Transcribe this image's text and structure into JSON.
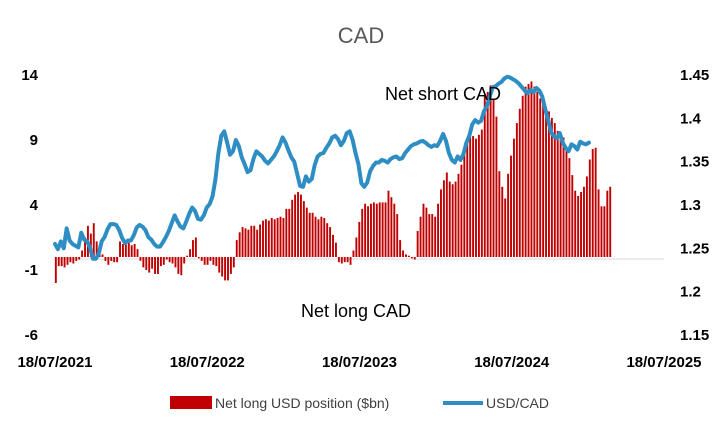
{
  "chart_data": {
    "type": "bar+line",
    "title": "CAD",
    "x_tick_labels": [
      "18/07/2021",
      "18/07/2022",
      "18/07/2023",
      "18/07/2024",
      "18/07/2025"
    ],
    "x_range": [
      "2021-07-18",
      "2025-07-18"
    ],
    "left_axis": {
      "ticks": [
        "14",
        "9",
        "4",
        "-1",
        "-6"
      ],
      "range": [
        -6,
        14
      ]
    },
    "right_axis": {
      "ticks": [
        "1.45",
        "1.4",
        "1.35",
        "1.3",
        "1.25",
        "1.2",
        "1.15"
      ],
      "range": [
        1.15,
        1.45
      ]
    },
    "annotations": {
      "top": "Net short CAD",
      "bottom": "Net long CAD"
    },
    "legend": {
      "position": "bottom"
    },
    "series": [
      {
        "name": "Net long USD position ($bn)",
        "axis": "left",
        "color": "#c00000",
        "date_step_days": 7,
        "start_date": "2021-07-20",
        "values": [
          -2,
          -0.7,
          -0.7,
          -0.8,
          -0.6,
          -0.4,
          -0.5,
          -0.3,
          -0.2,
          0.5,
          1.5,
          2.4,
          1.8,
          2.6,
          1.2,
          0.4,
          0.2,
          -0.3,
          -0.6,
          -0.3,
          -0.4,
          -0.4,
          1.2,
          1,
          1.1,
          1.1,
          0.9,
          1,
          0.6,
          -0.3,
          -0.8,
          -1,
          -1.2,
          -0.9,
          -1.3,
          -1.3,
          -0.7,
          -0.6,
          -0.2,
          -0.4,
          -0.5,
          -0.8,
          -1.3,
          -1.4,
          -0.5,
          0.1,
          0.6,
          1.3,
          1.5,
          -0.1,
          -0.3,
          -0.6,
          -0.6,
          -0.3,
          -0.6,
          -0.7,
          -1.2,
          -1.5,
          -1.8,
          -1.8,
          -1.3,
          -0.8,
          1.3,
          1.9,
          2.3,
          2.2,
          2.1,
          2.4,
          2.4,
          2.1,
          2.5,
          2.8,
          2.9,
          2.8,
          3,
          2.9,
          3,
          3.1,
          3,
          3.7,
          3.7,
          4.4,
          4.8,
          5,
          4.8,
          4.3,
          3.8,
          3.4,
          3.4,
          3.1,
          2.9,
          3.1,
          3,
          2.6,
          2.3,
          1.7,
          1.1,
          -0.4,
          -0.5,
          -0.4,
          -0.4,
          -0.6,
          0.5,
          1.5,
          2.7,
          3.7,
          4.1,
          3.9,
          4.1,
          4.2,
          4.1,
          4.2,
          4.2,
          4.2,
          5.1,
          4.6,
          4.1,
          3.3,
          1.3,
          0.5,
          0.2,
          0.1,
          -0.1,
          -0.2,
          2,
          3.1,
          4.1,
          3.8,
          3.3,
          3.3,
          3.1,
          4.1,
          5.2,
          5.9,
          6.5,
          5.8,
          5.6,
          5.8,
          6.4,
          7.1,
          8.1,
          8.8,
          9.2,
          9.3,
          9.1,
          9.4,
          9.8,
          12.4,
          12.7,
          13.2,
          12.2,
          10.8,
          6.6,
          5.4,
          4.5,
          6.4,
          7.8,
          9.1,
          10.3,
          11.4,
          12.4,
          13.1,
          13.3,
          13.5,
          13.1,
          12.7,
          12.2,
          11.8,
          11.5,
          11.2,
          10.7,
          10.3,
          9.7,
          9.3,
          9.2,
          8.5,
          7.6,
          6.3,
          5.1,
          4.7,
          5,
          5.4,
          6.2,
          7.5,
          8.3,
          8.4,
          5.2,
          3.9,
          3.9,
          5.1,
          5.4
        ]
      },
      {
        "name": "USD/CAD",
        "axis": "right",
        "color": "#2e8ec4",
        "date_step_days": 7,
        "start_date": "2021-07-18",
        "values": [
          1.255,
          1.249,
          1.258,
          1.25,
          1.273,
          1.259,
          1.255,
          1.253,
          1.251,
          1.268,
          1.26,
          1.258,
          1.251,
          1.238,
          1.238,
          1.244,
          1.258,
          1.263,
          1.272,
          1.278,
          1.278,
          1.277,
          1.271,
          1.262,
          1.256,
          1.259,
          1.259,
          1.265,
          1.274,
          1.277,
          1.275,
          1.271,
          1.263,
          1.26,
          1.255,
          1.252,
          1.252,
          1.257,
          1.263,
          1.27,
          1.279,
          1.288,
          1.281,
          1.275,
          1.273,
          1.281,
          1.29,
          1.297,
          1.293,
          1.284,
          1.283,
          1.288,
          1.297,
          1.301,
          1.31,
          1.33,
          1.36,
          1.38,
          1.385,
          1.372,
          1.358,
          1.362,
          1.375,
          1.368,
          1.355,
          1.347,
          1.338,
          1.34,
          1.353,
          1.362,
          1.359,
          1.356,
          1.351,
          1.348,
          1.352,
          1.356,
          1.362,
          1.369,
          1.378,
          1.372,
          1.363,
          1.355,
          1.35,
          1.336,
          1.322,
          1.321,
          1.333,
          1.327,
          1.33,
          1.346,
          1.356,
          1.359,
          1.36,
          1.366,
          1.371,
          1.378,
          1.38,
          1.376,
          1.369,
          1.374,
          1.383,
          1.385,
          1.375,
          1.36,
          1.347,
          1.325,
          1.321,
          1.326,
          1.339,
          1.345,
          1.349,
          1.349,
          1.352,
          1.351,
          1.349,
          1.353,
          1.355,
          1.356,
          1.353,
          1.354,
          1.36,
          1.364,
          1.368,
          1.37,
          1.371,
          1.373,
          1.374,
          1.372,
          1.369,
          1.367,
          1.369,
          1.368,
          1.374,
          1.382,
          1.374,
          1.36,
          1.352,
          1.349,
          1.356,
          1.352,
          1.359,
          1.372,
          1.38,
          1.393,
          1.398,
          1.395,
          1.397,
          1.408,
          1.414,
          1.425,
          1.436,
          1.437,
          1.44,
          1.442,
          1.446,
          1.448,
          1.447,
          1.445,
          1.443,
          1.44,
          1.436,
          1.432,
          1.429,
          1.433,
          1.43,
          1.435,
          1.432,
          1.425,
          1.411,
          1.398,
          1.384,
          1.379,
          1.377,
          1.383,
          1.372,
          1.366,
          1.362,
          1.37,
          1.368,
          1.364,
          1.373,
          1.371,
          1.37,
          1.372
        ]
      }
    ]
  }
}
